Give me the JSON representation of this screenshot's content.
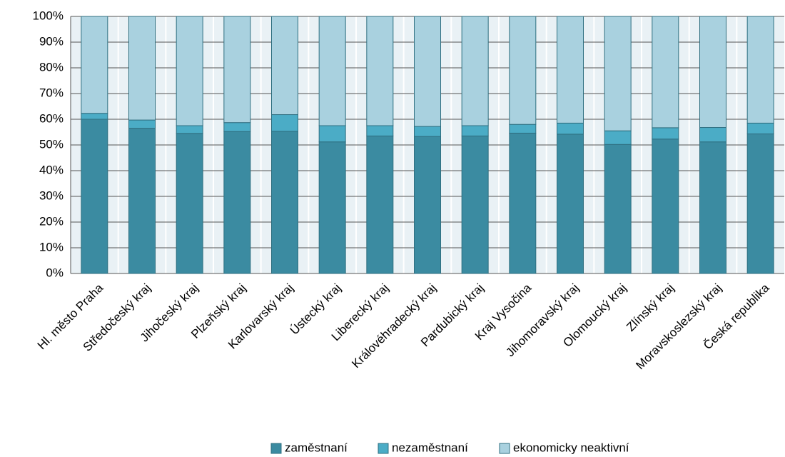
{
  "chart_data": {
    "type": "stacked_bar_100",
    "categories": [
      "Hl. město Praha",
      "Středočeský kraj",
      "Jihočeský kraj",
      "Plzeňský kraj",
      "Karlovarský kraj",
      "Ústecký kraj",
      "Liberecký kraj",
      "Královéhradecký kraj",
      "Pardubický kraj",
      "Kraj Vysočina",
      "Jihomoravský kraj",
      "Olomoucký kraj",
      "Zlínský kraj",
      "Moravskoslezský kraj",
      "Česká republika"
    ],
    "series": [
      {
        "name": "zaměstnaní",
        "color": "#3b8ba1",
        "values": [
          60.0,
          56.5,
          54.5,
          55.2,
          55.3,
          51.2,
          53.5,
          53.3,
          53.5,
          54.6,
          54.2,
          50.2,
          52.3,
          51.2,
          54.3
        ]
      },
      {
        "name": "nezaměstnaní",
        "color": "#4bacc6",
        "values": [
          2.3,
          3.2,
          3.0,
          3.5,
          6.5,
          6.3,
          4.0,
          3.9,
          4.0,
          3.4,
          4.3,
          5.3,
          4.4,
          5.6,
          4.2
        ]
      },
      {
        "name": "ekonomicky neaktivní",
        "color": "#a9d1df",
        "values": [
          37.7,
          40.3,
          42.5,
          41.3,
          38.2,
          42.5,
          42.5,
          42.8,
          42.5,
          42.0,
          41.5,
          44.5,
          43.3,
          43.2,
          41.5
        ]
      }
    ],
    "ylim": [
      0,
      100
    ],
    "yticks": [
      {
        "value": 0,
        "label": "0%"
      },
      {
        "value": 10,
        "label": "10%"
      },
      {
        "value": 20,
        "label": "20%"
      },
      {
        "value": 30,
        "label": "30%"
      },
      {
        "value": 40,
        "label": "40%"
      },
      {
        "value": 50,
        "label": "50%"
      },
      {
        "value": 60,
        "label": "60%"
      },
      {
        "value": 70,
        "label": "70%"
      },
      {
        "value": 80,
        "label": "80%"
      },
      {
        "value": 90,
        "label": "90%"
      },
      {
        "value": 100,
        "label": "100%"
      }
    ],
    "grid": true,
    "legend": "bottom"
  }
}
